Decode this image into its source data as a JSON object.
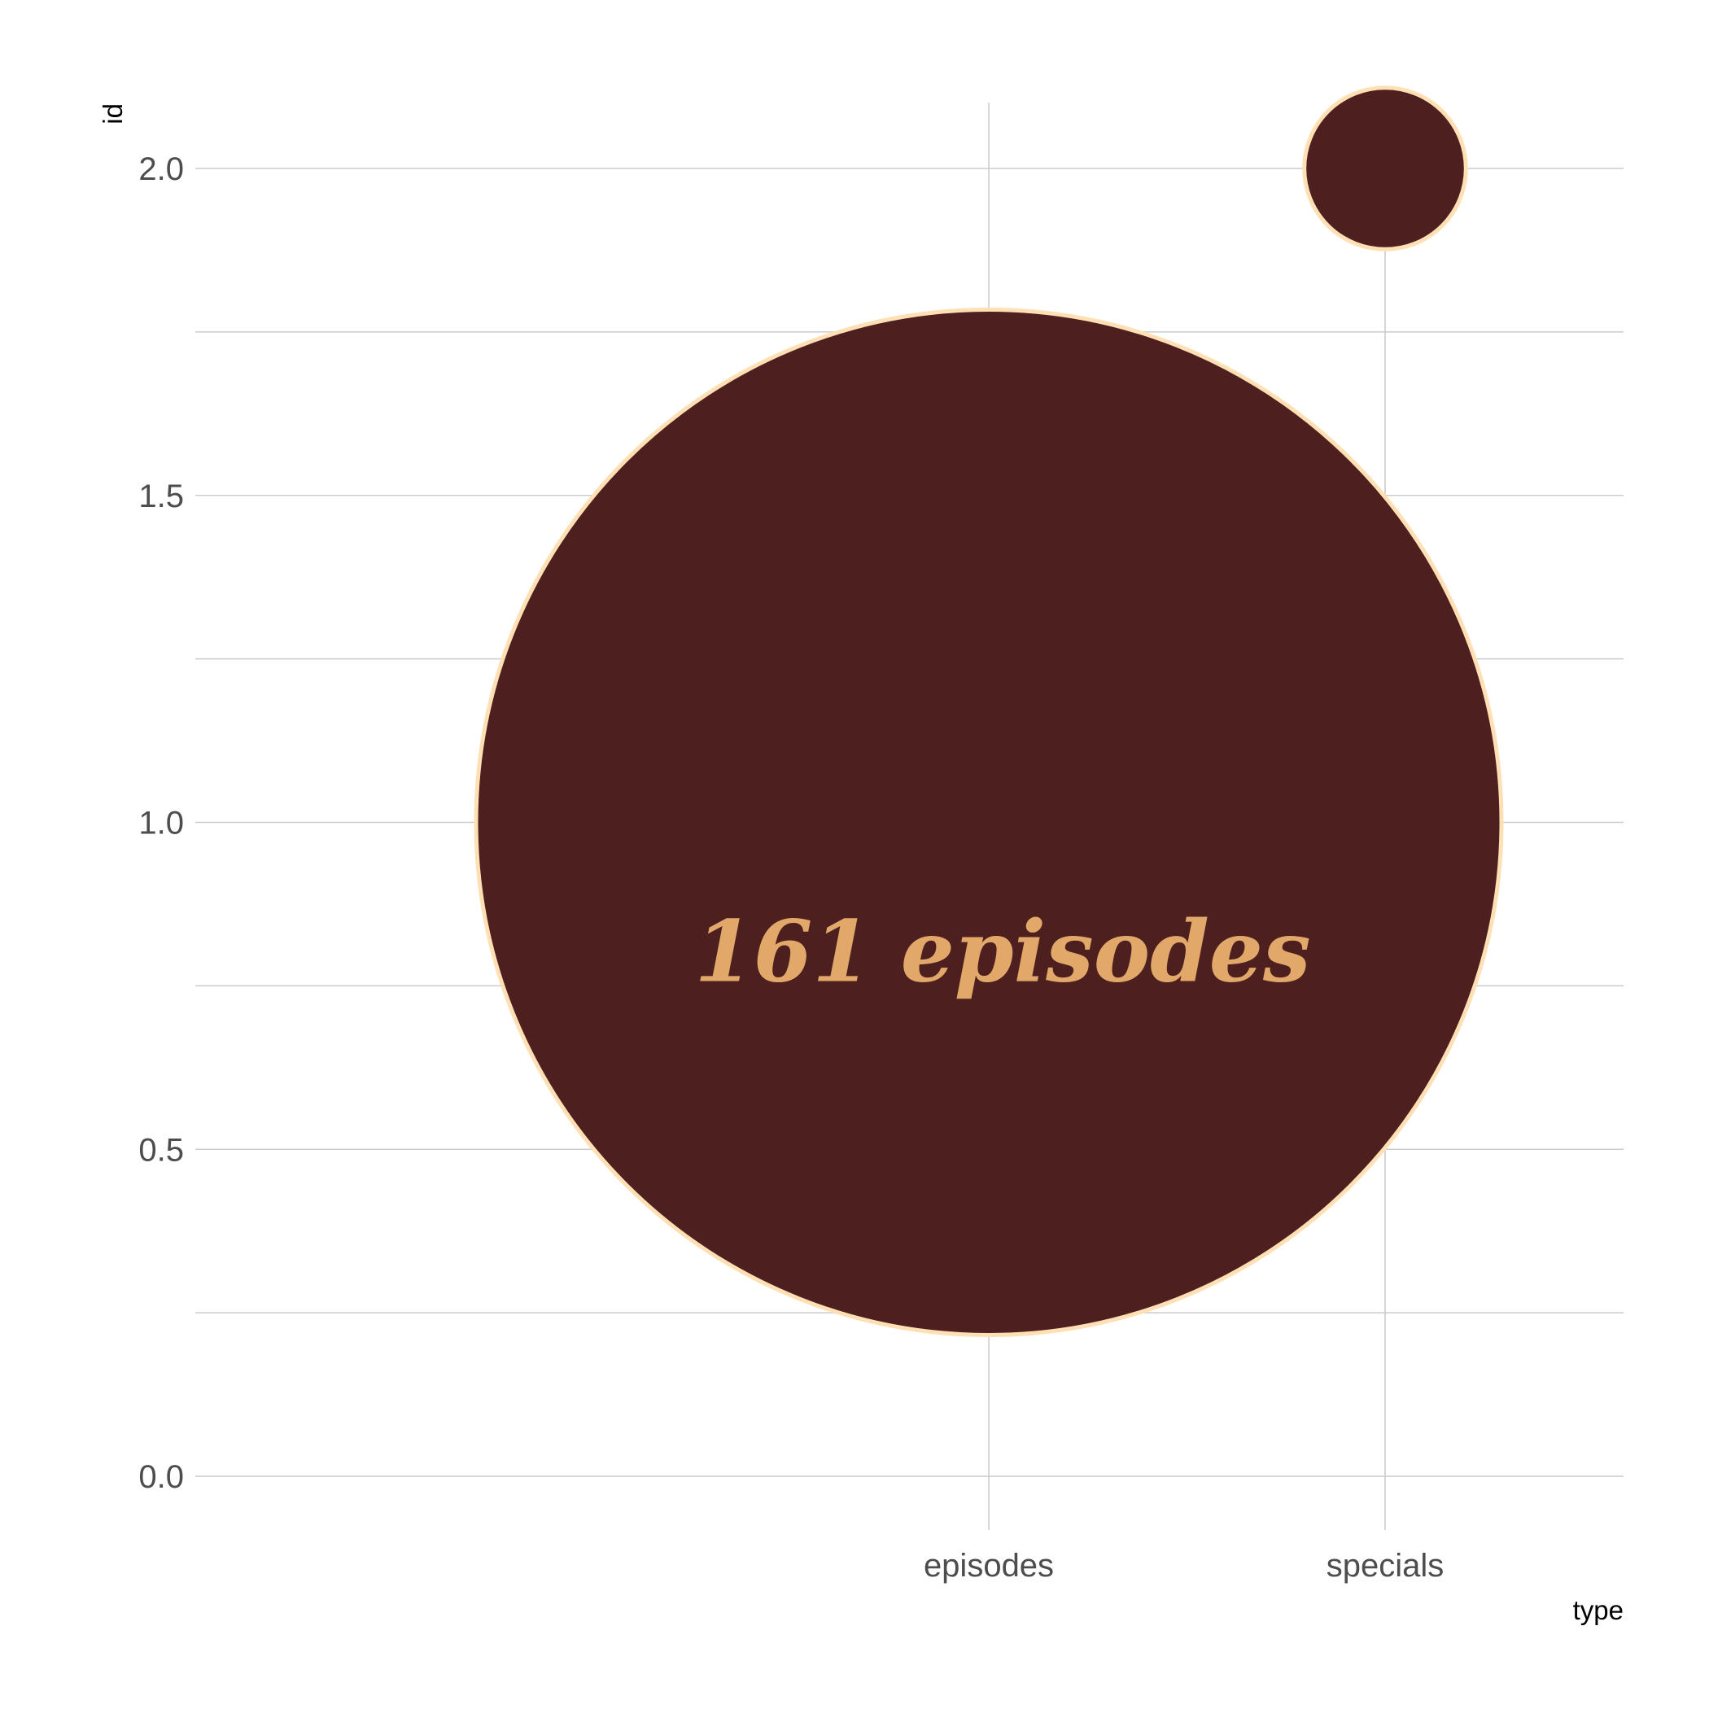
{
  "chart_data": {
    "type": "scatter",
    "xlabel": "type",
    "ylabel": "id",
    "categories": [
      "episodes",
      "specials"
    ],
    "ylim": [
      -0.1,
      2.1
    ],
    "yticks": [
      "0.0",
      "0.5",
      "1.0",
      "1.5",
      "2.0"
    ],
    "grid": true,
    "points": [
      {
        "x": "episodes",
        "y": 1,
        "size": 161,
        "label": "161 episodes"
      },
      {
        "x": "specials",
        "y": 2,
        "size": 4
      }
    ],
    "colors": {
      "fill": "#4d201f",
      "outline": "#ffe0b5",
      "label": "#e2a86a"
    }
  }
}
